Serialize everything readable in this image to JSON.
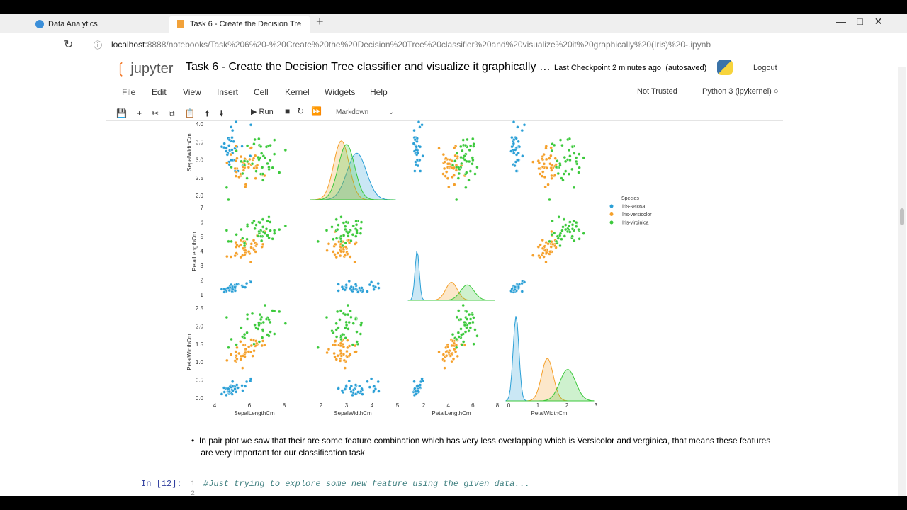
{
  "browser": {
    "tabs": [
      "Data Analytics",
      "Task 6 - Create the Decision Tre"
    ],
    "url_host": "localhost",
    "url_rest": ":8888/notebooks/Task%206%20-%20Create%20the%20Decision%20Tree%20classifier%20and%20visualize%20it%20graphically%20(Iris)%20-.ipynb"
  },
  "header": {
    "logo": "jupyter",
    "title": "Task 6 - Create the Decision Tree classifier and visualize it graphically …",
    "checkpoint": "Last Checkpoint",
    "checkpoint_time": "2 minutes ago",
    "autosaved": "(autosaved)",
    "logout": "Logout"
  },
  "menu": [
    "File",
    "Edit",
    "View",
    "Insert",
    "Cell",
    "Kernel",
    "Widgets",
    "Help"
  ],
  "status": {
    "trusted": "Not Trusted",
    "kernel": "Python 3 (ipykernel)"
  },
  "toolbar": {
    "run": "Run",
    "cell_type": "Markdown"
  },
  "plot": {
    "y_labels": [
      "SepalWidthCm",
      "PetalLengthCm",
      "PetalWidthCm"
    ],
    "x_labels": [
      "SepalLengthCm",
      "SepalWidthCm",
      "PetalLengthCm",
      "PetalWidthCm"
    ],
    "y_ticks": [
      [
        "2.0",
        "2.5",
        "3.0",
        "3.5",
        "4.0"
      ],
      [
        "1",
        "2",
        "3",
        "4",
        "5",
        "6",
        "7"
      ],
      [
        "0.0",
        "0.5",
        "1.0",
        "1.5",
        "2.0",
        "2.5"
      ]
    ],
    "x_ticks": [
      [
        "4",
        "6",
        "8"
      ],
      [
        "2",
        "3",
        "4",
        "5"
      ],
      [
        "2",
        "4",
        "6",
        "8"
      ],
      [
        "0",
        "1",
        "2",
        "3"
      ]
    ],
    "legend": {
      "title": "Species",
      "entries": [
        "Iris-setosa",
        "Iris-versicolor",
        "Iris-virginica"
      ]
    }
  },
  "markdown": {
    "lines": [
      "In pair plot we saw that their are some feature combination which has very less overlapping which is Versicolor and verginica, that means these features",
      "are very important for our classification task"
    ]
  },
  "code": {
    "prompt": "In [12]:",
    "line_numbers": [
      "1",
      "2"
    ],
    "line": "#Just trying to explore some new feature using the given data..."
  }
}
